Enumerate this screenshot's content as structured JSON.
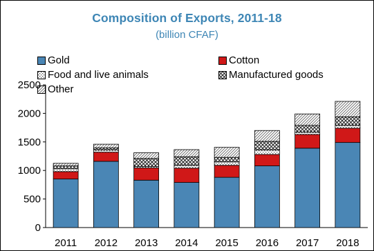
{
  "chart_data": {
    "type": "bar",
    "stacked": true,
    "title": "Composition of Exports, 2011-18",
    "subtitle": "(billion CFAF)",
    "categories": [
      "2011",
      "2012",
      "2013",
      "2014",
      "2015",
      "2016",
      "2017",
      "2018"
    ],
    "series": [
      {
        "name": "Gold",
        "color": "#4a86b5",
        "pattern": "solid",
        "values": [
          850,
          1160,
          830,
          790,
          880,
          1080,
          1390,
          1490
        ]
      },
      {
        "name": "Cotton",
        "color": "#d01818",
        "pattern": "solid",
        "values": [
          130,
          160,
          215,
          250,
          210,
          200,
          240,
          250
        ]
      },
      {
        "name": "Food and live animals",
        "color": "#ffffff",
        "pattern": "dotted",
        "values": [
          50,
          40,
          25,
          50,
          60,
          80,
          40,
          50
        ]
      },
      {
        "name": "Manufactured goods",
        "color": "#ffffff",
        "pattern": "diagonal-cross",
        "values": [
          50,
          35,
          140,
          150,
          80,
          150,
          120,
          150
        ]
      },
      {
        "name": "Other",
        "color": "#ffffff",
        "pattern": "diagonal",
        "values": [
          45,
          65,
          100,
          125,
          175,
          190,
          200,
          270
        ]
      }
    ],
    "yticks": [
      0,
      500,
      1000,
      1500,
      2000,
      2500
    ],
    "ylim": [
      0,
      2500
    ],
    "xlabel": "",
    "ylabel": "",
    "grid": false,
    "legend_position": "top-left"
  }
}
